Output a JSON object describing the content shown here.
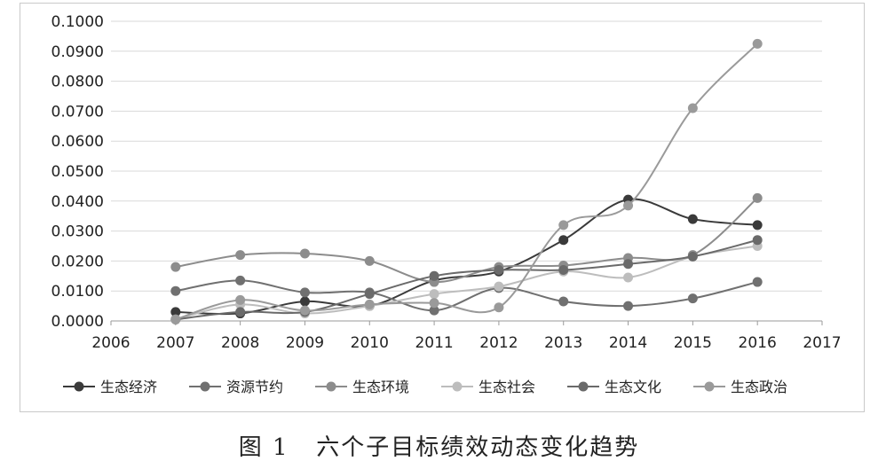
{
  "caption": "图 1   六个子目标绩效动态变化趋势",
  "chart_data": {
    "type": "line",
    "title": "",
    "xlabel": "",
    "ylabel": "",
    "x_ticks": [
      "2006",
      "2007",
      "2008",
      "2009",
      "2010",
      "2011",
      "2012",
      "2013",
      "2014",
      "2015",
      "2016",
      "2017"
    ],
    "y_ticks": [
      "0.0000",
      "0.0100",
      "0.0200",
      "0.0300",
      "0.0400",
      "0.0500",
      "0.0600",
      "0.0700",
      "0.0800",
      "0.0900",
      "0.1000"
    ],
    "xlim": [
      2006,
      2017
    ],
    "ylim": [
      0,
      0.1
    ],
    "grid": "horizontal",
    "legend_position": "bottom",
    "x": [
      2007,
      2008,
      2009,
      2010,
      2011,
      2012,
      2013,
      2014,
      2015,
      2016
    ],
    "series": [
      {
        "name": "生态经济",
        "color": "#3a3a3a",
        "values": [
          0.003,
          0.0025,
          0.0065,
          0.005,
          0.0135,
          0.0165,
          0.027,
          0.0405,
          0.034,
          0.032
        ]
      },
      {
        "name": "资源节约",
        "color": "#707070",
        "values": [
          0.01,
          0.0135,
          0.0095,
          0.0095,
          0.0035,
          0.011,
          0.0065,
          0.005,
          0.0075,
          0.013
        ]
      },
      {
        "name": "生态环境",
        "color": "#8c8c8c",
        "values": [
          0.018,
          0.022,
          0.0225,
          0.02,
          0.013,
          0.018,
          0.0185,
          0.021,
          0.022,
          0.041
        ]
      },
      {
        "name": "生态社会",
        "color": "#bdbdbd",
        "values": [
          0.0005,
          0.0055,
          0.0025,
          0.005,
          0.009,
          0.0115,
          0.0165,
          0.0145,
          0.0215,
          0.025
        ]
      },
      {
        "name": "生态文化",
        "color": "#6a6a6a",
        "values": [
          0.0005,
          0.003,
          0.003,
          0.009,
          0.015,
          0.017,
          0.017,
          0.019,
          0.0215,
          0.027
        ]
      },
      {
        "name": "生态政治",
        "color": "#9a9a9a",
        "values": [
          0.0005,
          0.007,
          0.0035,
          0.0055,
          0.006,
          0.0045,
          0.032,
          0.0385,
          0.071,
          0.0925
        ]
      }
    ]
  }
}
